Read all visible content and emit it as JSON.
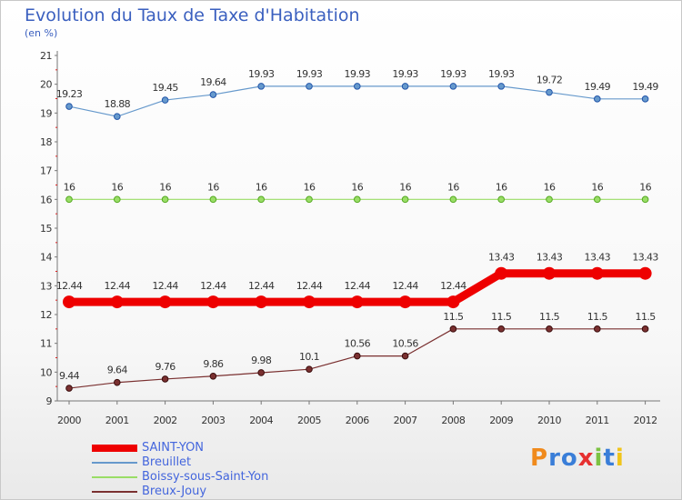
{
  "chart_data": {
    "type": "line",
    "title": "Evolution du Taux de Taxe d'Habitation",
    "subtitle": "(en %)",
    "x": [
      "2000",
      "2001",
      "2002",
      "2003",
      "2004",
      "2005",
      "2006",
      "2007",
      "2008",
      "2009",
      "2010",
      "2011",
      "2012"
    ],
    "ylim": [
      9,
      21
    ],
    "yticks": [
      9,
      10,
      11,
      12,
      13,
      14,
      15,
      16,
      17,
      18,
      19,
      20,
      21
    ],
    "grid": false,
    "legend_position": "bottom-left",
    "series": [
      {
        "name": "SAINT-YON",
        "color": "#ee0000",
        "labels": [
          "12.44",
          "12.44",
          "12.44",
          "12.44",
          "12.44",
          "12.44",
          "12.44",
          "12.44",
          "12.44",
          "13.43",
          "13.43",
          "13.43",
          "13.43"
        ],
        "values": [
          12.44,
          12.44,
          12.44,
          12.44,
          12.44,
          12.44,
          12.44,
          12.44,
          12.44,
          13.43,
          13.43,
          13.43,
          13.43
        ]
      },
      {
        "name": "Breuillet",
        "color": "#6699cc",
        "labels": [
          "19.23",
          "18.88",
          "19.45",
          "19.64",
          "19.93",
          "19.93",
          "19.93",
          "19.93",
          "19.93",
          "19.93",
          "19.72",
          "19.49",
          "19.49"
        ],
        "values": [
          19.23,
          18.88,
          19.45,
          19.64,
          19.93,
          19.93,
          19.93,
          19.93,
          19.93,
          19.93,
          19.72,
          19.49,
          19.49
        ]
      },
      {
        "name": "Boissy-sous-Saint-Yon",
        "color": "#99dd66",
        "labels": [
          "16",
          "16",
          "16",
          "16",
          "16",
          "16",
          "16",
          "16",
          "16",
          "16",
          "16",
          "16",
          "16"
        ],
        "values": [
          16,
          16,
          16,
          16,
          16,
          16,
          16,
          16,
          16,
          16,
          16,
          16,
          16
        ]
      },
      {
        "name": "Breux-Jouy",
        "color": "#7a3030",
        "labels": [
          "9.44",
          "9.64",
          "9.76",
          "9.86",
          "9.98",
          "10.1",
          "10.56",
          "10.56",
          "11.5",
          "11.5",
          "11.5",
          "11.5",
          "11.5"
        ],
        "values": [
          9.44,
          9.64,
          9.76,
          9.86,
          9.98,
          10.1,
          10.56,
          10.56,
          11.5,
          11.5,
          11.5,
          11.5,
          11.5
        ]
      }
    ]
  },
  "logo": {
    "text": "Proxiti",
    "colors": [
      "#f08a1c",
      "#3a7ed8",
      "#3a7ed8",
      "#e63030",
      "#7cc242",
      "#3a7ed8",
      "#f0c419"
    ]
  }
}
